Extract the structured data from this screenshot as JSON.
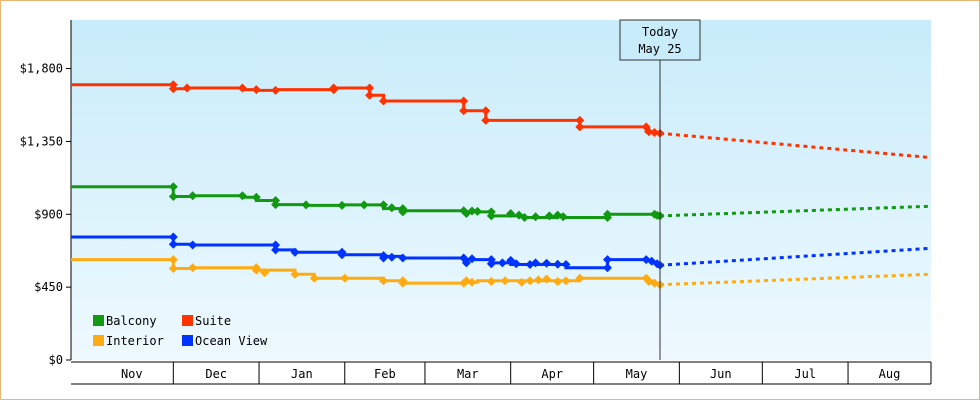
{
  "chart_data": {
    "type": "line",
    "ylim": [
      0,
      2100
    ],
    "yticks": [
      {
        "value": 0,
        "label": "$0"
      },
      {
        "value": 450,
        "label": "$450"
      },
      {
        "value": 900,
        "label": "$900"
      },
      {
        "value": 1350,
        "label": "$1,350"
      },
      {
        "value": 1800,
        "label": "$1,800"
      }
    ],
    "x_domain": [
      "2023-10-25",
      "2024-08-31"
    ],
    "months": [
      {
        "label": "Nov",
        "start": "2023-11-01",
        "end": "2023-12-01"
      },
      {
        "label": "Dec",
        "start": "2023-12-01",
        "end": "2024-01-01"
      },
      {
        "label": "Jan",
        "start": "2024-01-01",
        "end": "2024-02-01"
      },
      {
        "label": "Feb",
        "start": "2024-02-01",
        "end": "2024-03-01"
      },
      {
        "label": "Mar",
        "start": "2024-03-01",
        "end": "2024-04-01"
      },
      {
        "label": "Apr",
        "start": "2024-04-01",
        "end": "2024-05-01"
      },
      {
        "label": "May",
        "start": "2024-05-01",
        "end": "2024-06-01"
      },
      {
        "label": "Jun",
        "start": "2024-06-01",
        "end": "2024-07-01"
      },
      {
        "label": "Jul",
        "start": "2024-07-01",
        "end": "2024-08-01"
      },
      {
        "label": "Aug",
        "start": "2024-08-01",
        "end": "2024-09-01"
      }
    ],
    "today": {
      "date": "2024-05-25",
      "label_line1": "Today",
      "label_line2": "May 25"
    },
    "grid": false,
    "legend_position": "bottom-left",
    "series": [
      {
        "name": "Suite",
        "color": "#ff3300",
        "history": [
          [
            "2023-10-25",
            1700
          ],
          [
            "2023-12-01",
            1700
          ],
          [
            "2023-12-01",
            1675
          ],
          [
            "2023-12-06",
            1675
          ],
          [
            "2023-12-06",
            1680
          ],
          [
            "2023-12-26",
            1680
          ],
          [
            "2023-12-26",
            1670
          ],
          [
            "2023-12-31",
            1670
          ],
          [
            "2023-12-31",
            1665
          ],
          [
            "2024-01-07",
            1665
          ],
          [
            "2024-01-07",
            1670
          ],
          [
            "2024-01-28",
            1670
          ],
          [
            "2024-01-28",
            1680
          ],
          [
            "2024-02-10",
            1680
          ],
          [
            "2024-02-10",
            1635
          ],
          [
            "2024-02-15",
            1635
          ],
          [
            "2024-02-15",
            1600
          ],
          [
            "2024-03-15",
            1600
          ],
          [
            "2024-03-15",
            1540
          ],
          [
            "2024-03-23",
            1540
          ],
          [
            "2024-03-23",
            1480
          ],
          [
            "2024-04-26",
            1480
          ],
          [
            "2024-04-26",
            1440
          ],
          [
            "2024-05-20",
            1440
          ],
          [
            "2024-05-20",
            1410
          ],
          [
            "2024-05-25",
            1400
          ]
        ],
        "markers": [
          [
            "2023-12-01",
            1700
          ],
          [
            "2023-12-01",
            1675
          ],
          [
            "2023-12-06",
            1680
          ],
          [
            "2023-12-26",
            1680
          ],
          [
            "2023-12-31",
            1670
          ],
          [
            "2024-01-07",
            1665
          ],
          [
            "2024-01-28",
            1670
          ],
          [
            "2024-01-28",
            1680
          ],
          [
            "2024-02-10",
            1680
          ],
          [
            "2024-02-10",
            1635
          ],
          [
            "2024-02-15",
            1600
          ],
          [
            "2024-03-15",
            1600
          ],
          [
            "2024-03-15",
            1540
          ],
          [
            "2024-03-23",
            1540
          ],
          [
            "2024-03-23",
            1480
          ],
          [
            "2024-04-26",
            1480
          ],
          [
            "2024-04-26",
            1440
          ],
          [
            "2024-05-20",
            1440
          ],
          [
            "2024-05-21",
            1410
          ],
          [
            "2024-05-23",
            1405
          ],
          [
            "2024-05-25",
            1400
          ]
        ],
        "forecast": [
          [
            "2024-05-25",
            1400
          ],
          [
            "2024-08-31",
            1250
          ]
        ]
      },
      {
        "name": "Balcony",
        "color": "#119911",
        "history": [
          [
            "2023-10-25",
            1070
          ],
          [
            "2023-12-01",
            1070
          ],
          [
            "2023-12-01",
            1010
          ],
          [
            "2023-12-08",
            1010
          ],
          [
            "2023-12-08",
            1015
          ],
          [
            "2023-12-26",
            1015
          ],
          [
            "2023-12-26",
            1005
          ],
          [
            "2023-12-31",
            1005
          ],
          [
            "2023-12-31",
            985
          ],
          [
            "2024-01-07",
            985
          ],
          [
            "2024-01-07",
            960
          ],
          [
            "2024-01-18",
            960
          ],
          [
            "2024-01-18",
            955
          ],
          [
            "2024-01-31",
            955
          ],
          [
            "2024-01-31",
            958
          ],
          [
            "2024-02-15",
            958
          ],
          [
            "2024-02-15",
            935
          ],
          [
            "2024-02-22",
            935
          ],
          [
            "2024-02-22",
            922
          ],
          [
            "2024-03-15",
            922
          ],
          [
            "2024-03-15",
            915
          ],
          [
            "2024-03-25",
            915
          ],
          [
            "2024-03-25",
            890
          ],
          [
            "2024-04-06",
            890
          ],
          [
            "2024-04-06",
            880
          ],
          [
            "2024-04-18",
            880
          ],
          [
            "2024-04-18",
            895
          ],
          [
            "2024-04-20",
            895
          ],
          [
            "2024-04-20",
            880
          ],
          [
            "2024-05-06",
            880
          ],
          [
            "2024-05-06",
            900
          ],
          [
            "2024-05-23",
            900
          ],
          [
            "2024-05-25",
            890
          ]
        ],
        "markers": [
          [
            "2023-12-01",
            1070
          ],
          [
            "2023-12-01",
            1010
          ],
          [
            "2023-12-08",
            1015
          ],
          [
            "2023-12-26",
            1015
          ],
          [
            "2023-12-31",
            1005
          ],
          [
            "2024-01-07",
            985
          ],
          [
            "2024-01-07",
            960
          ],
          [
            "2024-01-18",
            958
          ],
          [
            "2024-01-31",
            955
          ],
          [
            "2024-02-08",
            958
          ],
          [
            "2024-02-15",
            958
          ],
          [
            "2024-02-18",
            940
          ],
          [
            "2024-02-22",
            935
          ],
          [
            "2024-02-22",
            925
          ],
          [
            "2024-02-22",
            915
          ],
          [
            "2024-03-15",
            922
          ],
          [
            "2024-03-16",
            905
          ],
          [
            "2024-03-18",
            920
          ],
          [
            "2024-03-20",
            918
          ],
          [
            "2024-03-25",
            915
          ],
          [
            "2024-03-25",
            890
          ],
          [
            "2024-04-01",
            905
          ],
          [
            "2024-04-04",
            895
          ],
          [
            "2024-04-06",
            880
          ],
          [
            "2024-04-10",
            885
          ],
          [
            "2024-04-15",
            890
          ],
          [
            "2024-04-18",
            895
          ],
          [
            "2024-04-20",
            885
          ],
          [
            "2024-05-06",
            880
          ],
          [
            "2024-05-06",
            900
          ],
          [
            "2024-05-23",
            900
          ],
          [
            "2024-05-24",
            893
          ],
          [
            "2024-05-25",
            890
          ]
        ],
        "forecast": [
          [
            "2024-05-25",
            890
          ],
          [
            "2024-08-31",
            950
          ]
        ]
      },
      {
        "name": "Ocean View",
        "color": "#0033ff",
        "history": [
          [
            "2023-10-25",
            760
          ],
          [
            "2023-12-01",
            760
          ],
          [
            "2023-12-01",
            715
          ],
          [
            "2023-12-08",
            715
          ],
          [
            "2023-12-08",
            710
          ],
          [
            "2024-01-07",
            710
          ],
          [
            "2024-01-07",
            680
          ],
          [
            "2024-01-14",
            680
          ],
          [
            "2024-01-14",
            665
          ],
          [
            "2024-01-31",
            665
          ],
          [
            "2024-01-31",
            650
          ],
          [
            "2024-02-15",
            650
          ],
          [
            "2024-02-15",
            640
          ],
          [
            "2024-02-22",
            640
          ],
          [
            "2024-02-22",
            630
          ],
          [
            "2024-03-15",
            630
          ],
          [
            "2024-03-15",
            620
          ],
          [
            "2024-03-25",
            620
          ],
          [
            "2024-03-25",
            600
          ],
          [
            "2024-04-01",
            600
          ],
          [
            "2024-04-01",
            590
          ],
          [
            "2024-04-21",
            590
          ],
          [
            "2024-04-21",
            570
          ],
          [
            "2024-05-06",
            570
          ],
          [
            "2024-05-06",
            620
          ],
          [
            "2024-05-20",
            620
          ],
          [
            "2024-05-25",
            585
          ]
        ],
        "markers": [
          [
            "2023-12-01",
            760
          ],
          [
            "2023-12-01",
            715
          ],
          [
            "2023-12-08",
            710
          ],
          [
            "2024-01-07",
            710
          ],
          [
            "2024-01-07",
            680
          ],
          [
            "2024-01-14",
            665
          ],
          [
            "2024-01-31",
            665
          ],
          [
            "2024-01-31",
            650
          ],
          [
            "2024-02-15",
            645
          ],
          [
            "2024-02-15",
            630
          ],
          [
            "2024-02-18",
            635
          ],
          [
            "2024-02-22",
            630
          ],
          [
            "2024-03-15",
            630
          ],
          [
            "2024-03-16",
            600
          ],
          [
            "2024-03-18",
            625
          ],
          [
            "2024-03-25",
            620
          ],
          [
            "2024-03-25",
            595
          ],
          [
            "2024-03-29",
            600
          ],
          [
            "2024-04-01",
            615
          ],
          [
            "2024-04-03",
            595
          ],
          [
            "2024-04-08",
            590
          ],
          [
            "2024-04-10",
            600
          ],
          [
            "2024-04-14",
            598
          ],
          [
            "2024-04-18",
            592
          ],
          [
            "2024-04-21",
            590
          ],
          [
            "2024-05-06",
            570
          ],
          [
            "2024-05-06",
            620
          ],
          [
            "2024-05-20",
            620
          ],
          [
            "2024-05-22",
            610
          ],
          [
            "2024-05-24",
            595
          ],
          [
            "2024-05-25",
            585
          ]
        ],
        "forecast": [
          [
            "2024-05-25",
            585
          ],
          [
            "2024-08-31",
            690
          ]
        ]
      },
      {
        "name": "Interior",
        "color": "#ffaa11",
        "history": [
          [
            "2023-10-25",
            620
          ],
          [
            "2023-12-01",
            620
          ],
          [
            "2023-12-01",
            565
          ],
          [
            "2023-12-08",
            565
          ],
          [
            "2023-12-08",
            570
          ],
          [
            "2023-12-31",
            570
          ],
          [
            "2023-12-31",
            555
          ],
          [
            "2024-01-14",
            555
          ],
          [
            "2024-01-14",
            530
          ],
          [
            "2024-01-21",
            530
          ],
          [
            "2024-01-21",
            505
          ],
          [
            "2024-02-15",
            505
          ],
          [
            "2024-02-15",
            490
          ],
          [
            "2024-02-22",
            490
          ],
          [
            "2024-02-22",
            475
          ],
          [
            "2024-03-15",
            475
          ],
          [
            "2024-03-15",
            480
          ],
          [
            "2024-03-20",
            480
          ],
          [
            "2024-03-20",
            490
          ],
          [
            "2024-04-26",
            490
          ],
          [
            "2024-04-26",
            505
          ],
          [
            "2024-05-20",
            505
          ],
          [
            "2024-05-25",
            465
          ]
        ],
        "markers": [
          [
            "2023-12-01",
            620
          ],
          [
            "2023-12-01",
            565
          ],
          [
            "2023-12-08",
            570
          ],
          [
            "2023-12-31",
            570
          ],
          [
            "2023-12-31",
            555
          ],
          [
            "2024-01-03",
            540
          ],
          [
            "2024-01-14",
            530
          ],
          [
            "2024-01-21",
            505
          ],
          [
            "2024-02-01",
            505
          ],
          [
            "2024-02-15",
            490
          ],
          [
            "2024-02-22",
            475
          ],
          [
            "2024-02-22",
            490
          ],
          [
            "2024-03-15",
            475
          ],
          [
            "2024-03-16",
            490
          ],
          [
            "2024-03-18",
            480
          ],
          [
            "2024-03-25",
            485
          ],
          [
            "2024-03-30",
            490
          ],
          [
            "2024-04-05",
            480
          ],
          [
            "2024-04-08",
            490
          ],
          [
            "2024-04-11",
            495
          ],
          [
            "2024-04-14",
            500
          ],
          [
            "2024-04-18",
            485
          ],
          [
            "2024-04-21",
            490
          ],
          [
            "2024-04-26",
            505
          ],
          [
            "2024-05-20",
            505
          ],
          [
            "2024-05-21",
            485
          ],
          [
            "2024-05-23",
            475
          ],
          [
            "2024-05-25",
            465
          ]
        ],
        "forecast": [
          [
            "2024-05-25",
            465
          ],
          [
            "2024-08-31",
            530
          ]
        ]
      }
    ],
    "legend": [
      {
        "name": "Balcony",
        "color": "#119911"
      },
      {
        "name": "Suite",
        "color": "#ff3300"
      },
      {
        "name": "Interior",
        "color": "#ffaa11"
      },
      {
        "name": "Ocean View",
        "color": "#0033ff"
      }
    ]
  }
}
